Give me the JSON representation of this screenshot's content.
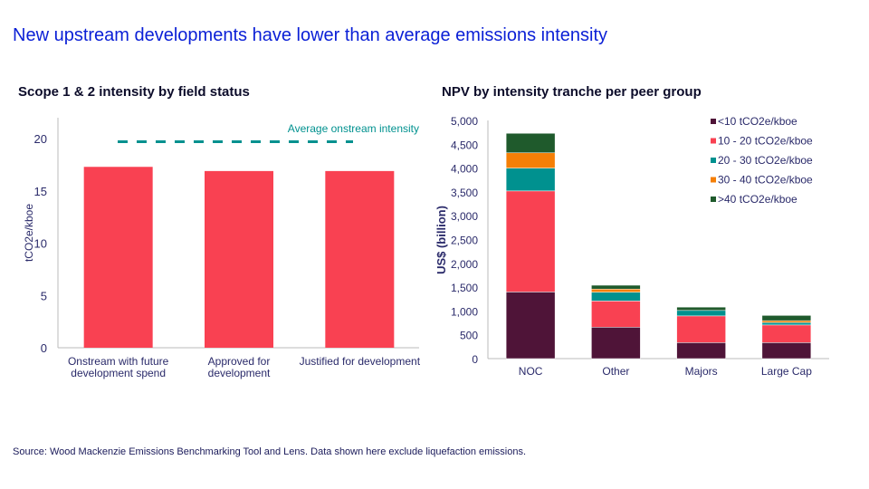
{
  "header": {
    "title": "New upstream developments have lower than average emissions intensity"
  },
  "footer": {
    "source": "Source: Wood Mackenzie Emissions Benchmarking Tool and Lens. Data shown here exclude liquefaction emissions."
  },
  "colors": {
    "c1": "#4f1438",
    "c2": "#f94152",
    "c3": "#00918f",
    "c4": "#f57f06",
    "c5": "#1f5a2c",
    "bar": "#f94152",
    "avg": "#00918f"
  },
  "chart_data": [
    {
      "type": "bar",
      "title": "Scope 1 & 2 intensity by field status",
      "ylabel": "tCO2e/kboe",
      "ylim": [
        0,
        22
      ],
      "yticks": [
        "0",
        "5",
        "10",
        "15",
        "20"
      ],
      "categories": [
        [
          "Onstream with future",
          "development spend"
        ],
        [
          "Approved for",
          "development"
        ],
        [
          "Justified for development"
        ]
      ],
      "values": [
        17.3,
        16.9,
        16.9
      ],
      "reference_line": {
        "label": "Average onstream intensity",
        "value": 19.7,
        "style": "dashed"
      },
      "grid": false
    },
    {
      "type": "bar",
      "stacked": true,
      "title": "NPV by intensity tranche per peer group",
      "ylabel": "US$ (billion)",
      "ylim": [
        0,
        5000
      ],
      "yticks": [
        "0",
        "500",
        "1,000",
        "1,500",
        "2,000",
        "2,500",
        "3,000",
        "3,500",
        "4,000",
        "4,500",
        "5,000"
      ],
      "categories": [
        "NOC",
        "Other",
        "Majors",
        "Large Cap"
      ],
      "legend_position": "top-right",
      "grid": false,
      "series": [
        {
          "name": "<10 tCO2e/kboe",
          "values": [
            1400,
            660,
            336,
            336
          ]
        },
        {
          "name": "10 - 20 tCO2e/kboe",
          "values": [
            2120,
            550,
            560,
            370
          ]
        },
        {
          "name": "20 - 30 tCO2e/kboe",
          "values": [
            480,
            185,
            115,
            50
          ]
        },
        {
          "name": "30 - 40 tCO2e/kboe",
          "values": [
            320,
            65,
            0,
            40
          ]
        },
        {
          "name": ">40 tCO2e/kboe",
          "values": [
            410,
            80,
            70,
            110
          ]
        }
      ]
    }
  ]
}
